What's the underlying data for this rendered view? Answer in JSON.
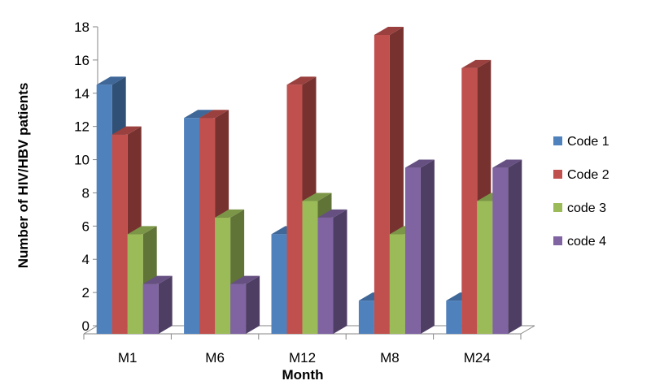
{
  "chart_data": {
    "type": "bar",
    "categories": [
      "M1",
      "M6",
      "M12",
      "M8",
      "M24"
    ],
    "series": [
      {
        "name": "Code 1",
        "values": [
          15,
          13,
          6,
          2,
          2
        ],
        "color": "#4F81BD"
      },
      {
        "name": "Code 2",
        "values": [
          12,
          13,
          15,
          18,
          16
        ],
        "color": "#C0504D"
      },
      {
        "name": "code 3",
        "values": [
          6,
          7,
          8,
          6,
          8
        ],
        "color": "#9BBB59"
      },
      {
        "name": "code 4",
        "values": [
          3,
          3,
          7,
          10,
          10
        ],
        "color": "#8064A2"
      }
    ],
    "title": "",
    "xlabel": "Month",
    "ylabel": "Number of HIV/HBV patients",
    "ylim": [
      0,
      18
    ],
    "yticks": [
      0,
      2,
      4,
      6,
      8,
      10,
      12,
      14,
      16,
      18
    ],
    "grid": false,
    "legend_position": "right",
    "style": "3d-clustered-column"
  }
}
